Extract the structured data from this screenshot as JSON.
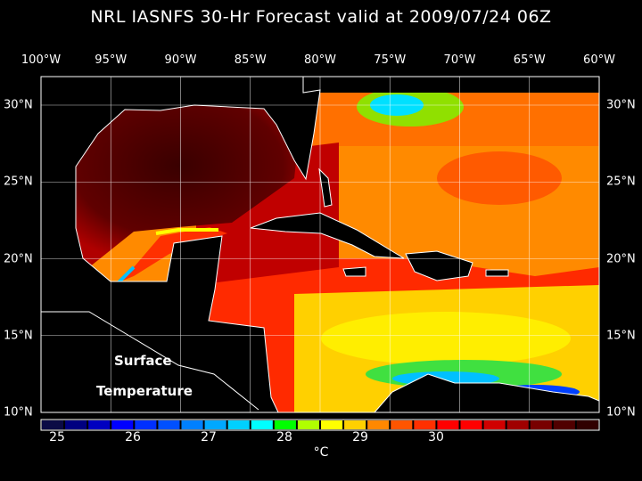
{
  "title": "NRL IASNFS  30-Hr Forecast valid at 2009/07/24 06Z",
  "lon_labels": [
    "100°W",
    "95°W",
    "90°W",
    "85°W",
    "80°W",
    "75°W",
    "70°W",
    "65°W",
    "60°W"
  ],
  "lat_labels": [
    "30°N",
    "25°N",
    "20°N",
    "15°N",
    "10°N"
  ],
  "overlay": {
    "line1": "Surface",
    "line2": "Temperature"
  },
  "colorbar": {
    "unit": "°C",
    "ticks": [
      "25",
      "26",
      "27",
      "28",
      "29",
      "30"
    ],
    "colors": [
      "#0b0b45",
      "#000080",
      "#0000c0",
      "#0000ff",
      "#0030ff",
      "#0050ff",
      "#0080ff",
      "#00a8ff",
      "#00d0ff",
      "#00ffff",
      "#00ff00",
      "#b0ff00",
      "#ffff00",
      "#ffd000",
      "#ff8800",
      "#ff5500",
      "#ff3000",
      "#ff0000",
      "#ff0000",
      "#d00000",
      "#a00000",
      "#780000",
      "#500000",
      "#300000"
    ]
  }
}
